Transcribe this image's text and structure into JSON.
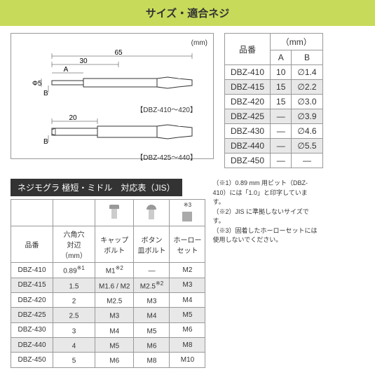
{
  "header": "サイズ・適合ネジ",
  "diagram": {
    "unit": "(mm)",
    "dim_65": "65",
    "dim_30": "30",
    "dim_A": "A",
    "dim_20": "20",
    "dim_B": "B",
    "dim_phi5": "Φ5",
    "label_top": "【DBZ-410～420】",
    "label_bottom": "【DBZ-425～440】"
  },
  "size_table": {
    "headers": {
      "part": "品番",
      "mm": "（mm）",
      "A": "A",
      "B": "B"
    },
    "rows": [
      {
        "part": "DBZ-410",
        "A": "10",
        "B": "∅1.4",
        "hl": false
      },
      {
        "part": "DBZ-415",
        "A": "15",
        "B": "∅2.2",
        "hl": true
      },
      {
        "part": "DBZ-420",
        "A": "15",
        "B": "∅3.0",
        "hl": false
      },
      {
        "part": "DBZ-425",
        "A": "—",
        "B": "∅3.9",
        "hl": true
      },
      {
        "part": "DBZ-430",
        "A": "—",
        "B": "∅4.6",
        "hl": false
      },
      {
        "part": "DBZ-440",
        "A": "—",
        "B": "∅5.5",
        "hl": true
      },
      {
        "part": "DBZ-450",
        "A": "—",
        "B": "—",
        "hl": false
      }
    ]
  },
  "compat": {
    "title": "ネジモグラ 極短・ミドル　対応表（JIS）",
    "headers": {
      "part": "品番",
      "hex": "六角穴\n対辺（mm）",
      "cap": "キャップ\nボルト",
      "button": "ボタン\n皿ボルト",
      "hollow": "ホーロー\nセット",
      "ref3": "※3"
    },
    "rows": [
      {
        "part": "DBZ-410",
        "hex": "0.89",
        "hexref": "※1",
        "cap": "M1",
        "capref": "※2",
        "button": "—",
        "hollow": "M2",
        "hl": false
      },
      {
        "part": "DBZ-415",
        "hex": "1.5",
        "hexref": "",
        "cap": "M1.6 / M2",
        "capref": "",
        "button": "M2.5",
        "buttonref": "※2",
        "hollow": "M3",
        "hl": true
      },
      {
        "part": "DBZ-420",
        "hex": "2",
        "hexref": "",
        "cap": "M2.5",
        "capref": "",
        "button": "M3",
        "buttonref": "",
        "hollow": "M4",
        "hl": false
      },
      {
        "part": "DBZ-425",
        "hex": "2.5",
        "hexref": "",
        "cap": "M3",
        "capref": "",
        "button": "M4",
        "buttonref": "",
        "hollow": "M5",
        "hl": true
      },
      {
        "part": "DBZ-430",
        "hex": "3",
        "hexref": "",
        "cap": "M4",
        "capref": "",
        "button": "M5",
        "buttonref": "",
        "hollow": "M6",
        "hl": false
      },
      {
        "part": "DBZ-440",
        "hex": "4",
        "hexref": "",
        "cap": "M5",
        "capref": "",
        "button": "M6",
        "buttonref": "",
        "hollow": "M8",
        "hl": true
      },
      {
        "part": "DBZ-450",
        "hex": "5",
        "hexref": "",
        "cap": "M6",
        "capref": "",
        "button": "M8",
        "buttonref": "",
        "hollow": "M10",
        "hl": false
      }
    ]
  },
  "notes": {
    "n1": "（※1）0.89 mm 用ビット（DBZ-410）には「1.0」と印字しています。",
    "n2": "（※2）JIS に準拠しないサイズです。",
    "n3": "（※3）固着したホーローセットには使用しないでください。"
  }
}
